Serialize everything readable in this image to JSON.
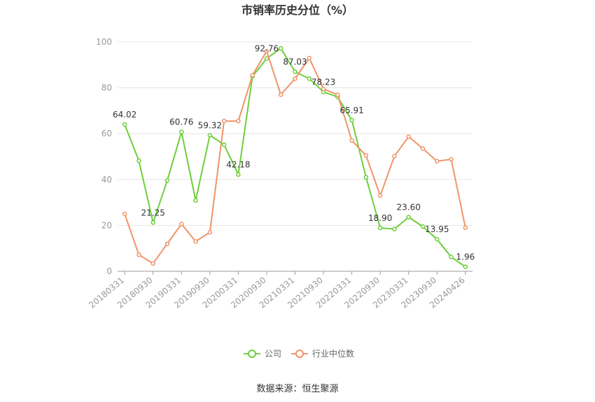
{
  "chart_data": {
    "type": "line",
    "title": "市销率历史分位（%）",
    "xlabel": "",
    "ylabel": "",
    "ylim": [
      0,
      100
    ],
    "yticks": [
      0,
      20,
      40,
      60,
      80,
      100
    ],
    "x": [
      "20180331",
      "20180630",
      "20180930",
      "20181231",
      "20190331",
      "20190630",
      "20190930",
      "20191231",
      "20200331",
      "20200630",
      "20200930",
      "20201231",
      "20210331",
      "20210630",
      "20210930",
      "20211231",
      "20220331",
      "20220630",
      "20220930",
      "20221231",
      "20230331",
      "20230630",
      "20230930",
      "20231231",
      "20240426"
    ],
    "xtick_labels": [
      "20180331",
      "20180930",
      "20190331",
      "20190930",
      "20200331",
      "20200930",
      "20210331",
      "20210930",
      "20220331",
      "20220930",
      "20230331",
      "20230930",
      "20240426"
    ],
    "series": [
      {
        "name": "公司",
        "color": "#6dcf3b",
        "values": [
          64.02,
          48.2,
          21.25,
          39.6,
          60.76,
          30.9,
          59.32,
          55.2,
          42.18,
          85.0,
          92.76,
          97.2,
          87.03,
          84.0,
          78.23,
          76.0,
          65.91,
          41.0,
          18.9,
          18.4,
          23.6,
          19.5,
          13.95,
          6.2,
          1.96
        ],
        "data_labels": [
          {
            "index": 0,
            "text": "64.02"
          },
          {
            "index": 2,
            "text": "21.25"
          },
          {
            "index": 4,
            "text": "60.76"
          },
          {
            "index": 6,
            "text": "59.32"
          },
          {
            "index": 8,
            "text": "42.18"
          },
          {
            "index": 10,
            "text": "92.76"
          },
          {
            "index": 12,
            "text": "87.03"
          },
          {
            "index": 14,
            "text": "78.23"
          },
          {
            "index": 16,
            "text": "65.91"
          },
          {
            "index": 18,
            "text": "18.90"
          },
          {
            "index": 20,
            "text": "23.60"
          },
          {
            "index": 22,
            "text": "13.95"
          },
          {
            "index": 24,
            "text": "1.96"
          }
        ]
      },
      {
        "name": "行业中位数",
        "color": "#f0946a",
        "values": [
          25.0,
          7.2,
          3.4,
          12.0,
          20.6,
          13.0,
          17.0,
          65.5,
          65.5,
          85.5,
          96.0,
          77.0,
          84.0,
          93.0,
          79.5,
          77.0,
          57.0,
          50.5,
          33.0,
          50.2,
          58.7,
          53.5,
          48.0,
          48.8,
          19.0
        ]
      }
    ],
    "legend_position": "bottom-center",
    "grid": true
  },
  "footer": {
    "source": "数据来源：恒生聚源"
  }
}
